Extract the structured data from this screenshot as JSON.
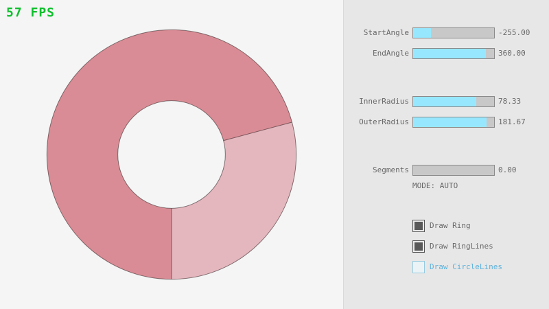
{
  "fps_counter": {
    "text": "57 FPS",
    "color": "#0DBF2C"
  },
  "ring_preview": {
    "start_angle": -255.0,
    "end_angle": 360.0,
    "inner_radius": 78.33,
    "outer_radius": 181.67,
    "colors": {
      "ring_overlap": "#D98C95",
      "ring_single": "#E4B6BD",
      "ring_lines": "rgba(0,0,0,0.45)"
    }
  },
  "panel": {
    "background": "#E7E7E7",
    "accent_color": "#97E8FF",
    "unchecked_accent": "#5CB2DC",
    "sliders": [
      {
        "label": "StartAngle",
        "value": "-255.00",
        "fill_pct": 21.7
      },
      {
        "label": "EndAngle",
        "value": "360.00",
        "fill_pct": 90.0
      },
      {
        "label": "InnerRadius",
        "value": "78.33",
        "fill_pct": 78.3
      },
      {
        "label": "OuterRadius",
        "value": "181.67",
        "fill_pct": 90.8
      },
      {
        "label": "Segments",
        "value": "0.00",
        "fill_pct": 0.0
      }
    ],
    "mode_label": "MODE: AUTO",
    "checkboxes": [
      {
        "label": "Draw Ring",
        "checked": true
      },
      {
        "label": "Draw RingLines",
        "checked": true
      },
      {
        "label": "Draw CircleLines",
        "checked": false
      }
    ]
  }
}
